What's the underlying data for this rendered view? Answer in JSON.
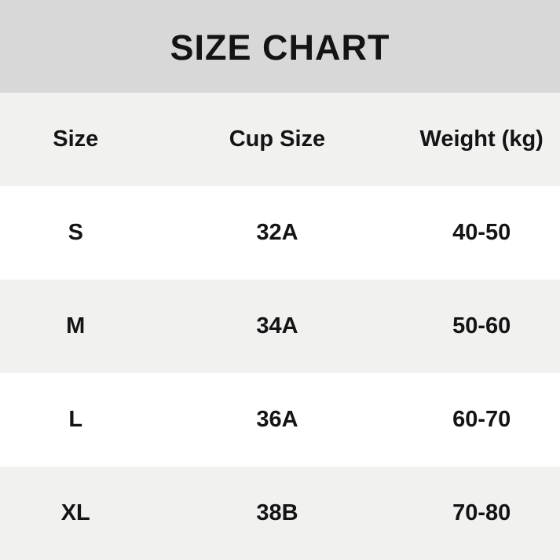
{
  "title": "SIZE CHART",
  "colors": {
    "banner_bg": "#d8d8d8",
    "row_alt_bg": "#f1f1f0",
    "row_bg": "#ffffff",
    "text": "#141414"
  },
  "table": {
    "headers": [
      "Size",
      "Cup Size",
      "Weight (kg)"
    ],
    "rows": [
      {
        "size": "S",
        "cup_size": "32A",
        "weight": "40-50"
      },
      {
        "size": "M",
        "cup_size": "34A",
        "weight": "50-60"
      },
      {
        "size": "L",
        "cup_size": "36A",
        "weight": "60-70"
      },
      {
        "size": "XL",
        "cup_size": "38B",
        "weight": "70-80"
      }
    ]
  },
  "chart_data": {
    "type": "table",
    "title": "SIZE CHART",
    "columns": [
      "Size",
      "Cup Size",
      "Weight (kg)"
    ],
    "rows": [
      [
        "S",
        "32A",
        "40-50"
      ],
      [
        "M",
        "34A",
        "50-60"
      ],
      [
        "L",
        "36A",
        "60-70"
      ],
      [
        "XL",
        "38B",
        "70-80"
      ]
    ]
  }
}
